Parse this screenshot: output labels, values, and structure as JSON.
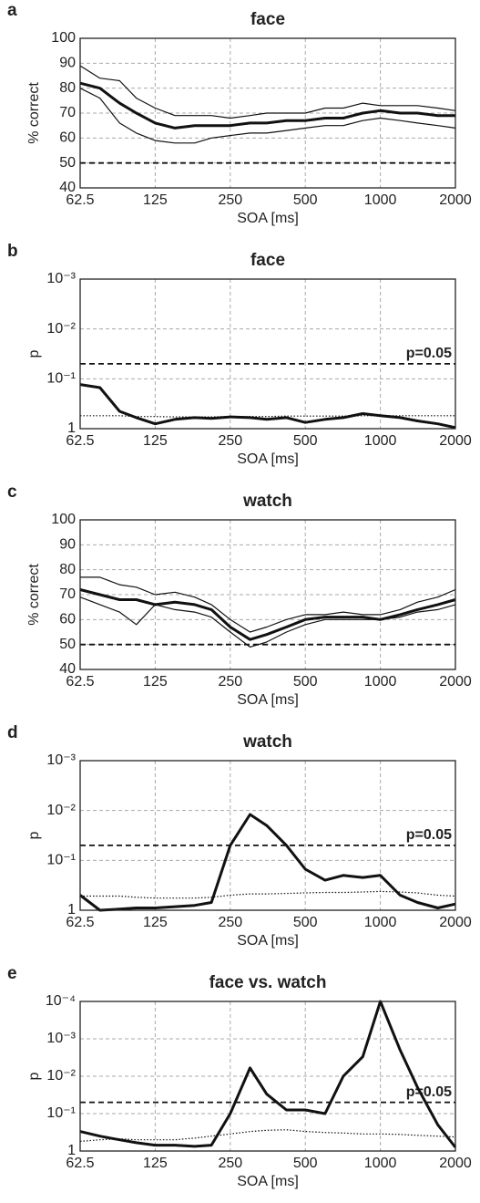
{
  "chart_data": [
    {
      "type": "line",
      "panel_label": "a",
      "title": "face",
      "xlabel": "SOA [ms]",
      "ylabel": "% correct",
      "xscale": "log",
      "yscale": "linear",
      "grid": true,
      "xlim": [
        62.5,
        2000
      ],
      "xticks": [
        62.5,
        125,
        250,
        500,
        1000,
        2000
      ],
      "ylim": [
        40,
        100
      ],
      "yticks": [
        40,
        50,
        60,
        70,
        80,
        90,
        100
      ],
      "reference_line": {
        "value": 50
      },
      "x": [
        62.5,
        75,
        90,
        105,
        125,
        150,
        180,
        210,
        250,
        300,
        350,
        420,
        500,
        600,
        710,
        850,
        1000,
        1200,
        1410,
        1700,
        2000
      ],
      "series": [
        {
          "color": "#111",
          "line_width": 3,
          "style": "solid",
          "values": [
            82,
            80,
            74,
            70,
            66,
            64,
            65,
            65,
            65,
            66,
            66,
            67,
            67,
            68,
            68,
            70,
            71,
            70,
            70,
            69,
            69
          ]
        },
        {
          "color": "#111",
          "line_width": 1.2,
          "style": "solid",
          "values": [
            89,
            84,
            83,
            76,
            72,
            69,
            69,
            69,
            68,
            69,
            70,
            70,
            70,
            72,
            72,
            74,
            73,
            73,
            73,
            72,
            71
          ]
        },
        {
          "color": "#111",
          "line_width": 1.2,
          "style": "solid",
          "values": [
            80,
            76,
            66,
            62,
            59,
            58,
            58,
            60,
            61,
            62,
            62,
            63,
            64,
            65,
            65,
            67,
            68,
            67,
            66,
            65,
            64
          ]
        }
      ]
    },
    {
      "type": "line",
      "panel_label": "b",
      "title": "face",
      "xlabel": "SOA [ms]",
      "ylabel": "p",
      "xscale": "log",
      "yscale": "log",
      "grid": true,
      "xlim": [
        62.5,
        2000
      ],
      "xticks": [
        62.5,
        125,
        250,
        500,
        1000,
        2000
      ],
      "ylim": [
        1,
        0.001
      ],
      "yticks": [
        1,
        {
          "value": 0.1,
          "label": "10⁻¹"
        },
        {
          "value": 0.01,
          "label": "10⁻²"
        },
        {
          "value": 0.001,
          "label": "10⁻³"
        }
      ],
      "reference_line": {
        "value": 0.05,
        "label": "p=0.05"
      },
      "x": [
        62.5,
        75,
        90,
        105,
        125,
        150,
        180,
        210,
        250,
        300,
        350,
        420,
        500,
        600,
        710,
        850,
        1000,
        1200,
        1410,
        1700,
        2000
      ],
      "series": [
        {
          "color": "#111",
          "line_width": 3,
          "style": "solid",
          "values": [
            0.13,
            0.15,
            0.45,
            0.6,
            0.8,
            0.65,
            0.6,
            0.62,
            0.58,
            0.6,
            0.65,
            0.6,
            0.75,
            0.65,
            0.6,
            0.5,
            0.55,
            0.6,
            0.7,
            0.8,
            0.95
          ]
        },
        {
          "color": "#111",
          "line_width": 1.2,
          "style": "dotted",
          "values": [
            0.55,
            0.55,
            0.55,
            0.57,
            0.57,
            0.58,
            0.58,
            0.58,
            0.57,
            0.57,
            0.57,
            0.56,
            0.56,
            0.56,
            0.56,
            0.55,
            0.55,
            0.55,
            0.55,
            0.55,
            0.55
          ]
        }
      ]
    },
    {
      "type": "line",
      "panel_label": "c",
      "title": "watch",
      "xlabel": "SOA [ms]",
      "ylabel": "% correct",
      "xscale": "log",
      "yscale": "linear",
      "grid": true,
      "xlim": [
        62.5,
        2000
      ],
      "xticks": [
        62.5,
        125,
        250,
        500,
        1000,
        2000
      ],
      "ylim": [
        40,
        100
      ],
      "yticks": [
        40,
        50,
        60,
        70,
        80,
        90,
        100
      ],
      "reference_line": {
        "value": 50
      },
      "x": [
        62.5,
        75,
        90,
        105,
        125,
        150,
        180,
        210,
        250,
        300,
        350,
        420,
        500,
        600,
        710,
        850,
        1000,
        1200,
        1410,
        1700,
        2000
      ],
      "series": [
        {
          "color": "#111",
          "line_width": 3,
          "style": "solid",
          "values": [
            72,
            70,
            68,
            68,
            66,
            67,
            66,
            64,
            57,
            52,
            54,
            57,
            60,
            61,
            61,
            61,
            60,
            62,
            64,
            66,
            68
          ]
        },
        {
          "color": "#111",
          "line_width": 1.2,
          "style": "solid",
          "values": [
            77,
            77,
            74,
            73,
            70,
            71,
            69,
            66,
            60,
            55,
            57,
            60,
            62,
            62,
            63,
            62,
            62,
            64,
            67,
            69,
            72
          ]
        },
        {
          "color": "#111",
          "line_width": 1.2,
          "style": "solid",
          "values": [
            69,
            66,
            63,
            58,
            66,
            64,
            63,
            61,
            55,
            49,
            51,
            55,
            58,
            60,
            60,
            60,
            60,
            61,
            63,
            64,
            66
          ]
        }
      ]
    },
    {
      "type": "line",
      "panel_label": "d",
      "title": "watch",
      "xlabel": "SOA [ms]",
      "ylabel": "p",
      "xscale": "log",
      "yscale": "log",
      "grid": true,
      "xlim": [
        62.5,
        2000
      ],
      "xticks": [
        62.5,
        125,
        250,
        500,
        1000,
        2000
      ],
      "ylim": [
        1,
        0.001
      ],
      "yticks": [
        1,
        {
          "value": 0.1,
          "label": "10⁻¹"
        },
        {
          "value": 0.01,
          "label": "10⁻²"
        },
        {
          "value": 0.001,
          "label": "10⁻³"
        }
      ],
      "reference_line": {
        "value": 0.05,
        "label": "p=0.05"
      },
      "x": [
        62.5,
        75,
        90,
        105,
        125,
        150,
        180,
        210,
        250,
        300,
        350,
        420,
        500,
        600,
        710,
        850,
        1000,
        1200,
        1410,
        1700,
        2000
      ],
      "series": [
        {
          "color": "#111",
          "line_width": 3,
          "style": "solid",
          "values": [
            0.5,
            1,
            0.95,
            0.9,
            0.9,
            0.85,
            0.8,
            0.7,
            0.05,
            0.012,
            0.02,
            0.05,
            0.15,
            0.25,
            0.2,
            0.22,
            0.2,
            0.5,
            0.7,
            0.9,
            0.75
          ]
        },
        {
          "color": "#111",
          "line_width": 1.2,
          "style": "dotted",
          "values": [
            0.52,
            0.52,
            0.52,
            0.55,
            0.57,
            0.57,
            0.57,
            0.55,
            0.5,
            0.47,
            0.47,
            0.46,
            0.45,
            0.44,
            0.44,
            0.43,
            0.42,
            0.43,
            0.45,
            0.5,
            0.52
          ]
        }
      ]
    },
    {
      "type": "line",
      "panel_label": "e",
      "title": "face vs. watch",
      "xlabel": "SOA [ms]",
      "ylabel": "p",
      "xscale": "log",
      "yscale": "log",
      "grid": true,
      "xlim": [
        62.5,
        2000
      ],
      "xticks": [
        62.5,
        125,
        250,
        500,
        1000,
        2000
      ],
      "ylim": [
        1,
        0.0001
      ],
      "yticks": [
        1,
        {
          "value": 0.1,
          "label": "10⁻¹"
        },
        {
          "value": 0.01,
          "label": "10⁻²"
        },
        {
          "value": 0.001,
          "label": "10⁻³"
        },
        {
          "value": 0.0001,
          "label": "10⁻⁴"
        }
      ],
      "reference_line": {
        "value": 0.05,
        "label": "p=0.05"
      },
      "x": [
        62.5,
        75,
        90,
        105,
        125,
        150,
        180,
        210,
        250,
        300,
        350,
        420,
        500,
        600,
        710,
        850,
        1000,
        1200,
        1410,
        1700,
        2000
      ],
      "series": [
        {
          "color": "#111",
          "line_width": 3,
          "style": "solid",
          "values": [
            0.3,
            0.4,
            0.5,
            0.6,
            0.7,
            0.7,
            0.75,
            0.7,
            0.1,
            0.006,
            0.03,
            0.08,
            0.08,
            0.1,
            0.01,
            0.003,
            0.0001,
            0.002,
            0.02,
            0.2,
            0.8
          ]
        },
        {
          "color": "#111",
          "line_width": 1.2,
          "style": "dotted",
          "values": [
            0.55,
            0.5,
            0.47,
            0.5,
            0.5,
            0.5,
            0.45,
            0.4,
            0.35,
            0.3,
            0.28,
            0.27,
            0.3,
            0.32,
            0.33,
            0.35,
            0.35,
            0.36,
            0.38,
            0.4,
            0.42
          ]
        }
      ]
    }
  ]
}
